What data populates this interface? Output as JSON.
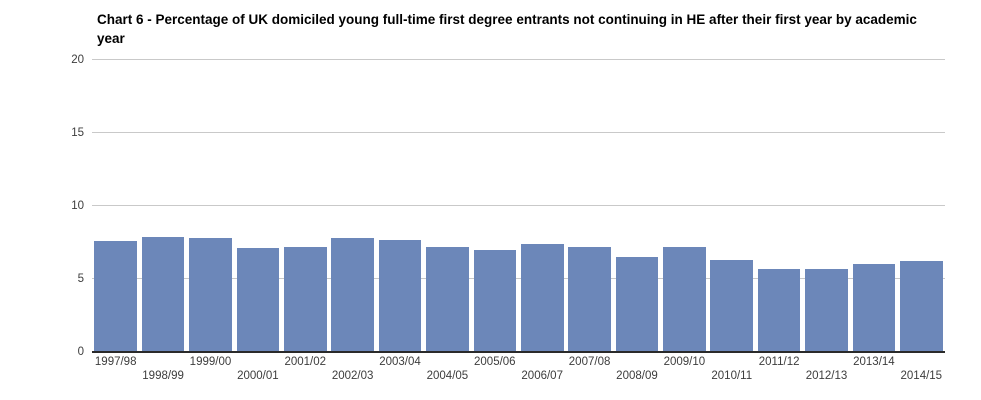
{
  "title": "Chart 6 - Percentage of UK domiciled young full-time first degree entrants not continuing in HE after their first year by academic year",
  "chart_data": {
    "type": "bar",
    "title": "Chart 6 - Percentage of UK domiciled young full-time first degree entrants not continuing in HE after their first year by academic year",
    "categories": [
      "1997/98",
      "1998/99",
      "1999/00",
      "2000/01",
      "2001/02",
      "2002/03",
      "2003/04",
      "2004/05",
      "2005/06",
      "2006/07",
      "2007/08",
      "2008/09",
      "2009/10",
      "2010/11",
      "2011/12",
      "2012/13",
      "2013/14",
      "2014/15"
    ],
    "values": [
      7.6,
      7.9,
      7.8,
      7.1,
      7.2,
      7.8,
      7.7,
      7.2,
      7.0,
      7.4,
      7.2,
      6.5,
      7.2,
      6.3,
      5.7,
      5.7,
      6.0,
      6.2
    ],
    "xlabel": "",
    "ylabel": "",
    "ylim": [
      0,
      20
    ],
    "yticks": [
      0,
      5,
      10,
      15,
      20
    ],
    "grid": true,
    "legend": "none",
    "colors": {
      "bar": "#6c87b9",
      "gridline": "#c9c9c9",
      "axis_line": "#2a2a2a",
      "tick_label": "#3d3d3d",
      "title": "#000000",
      "background": "#ffffff"
    }
  }
}
